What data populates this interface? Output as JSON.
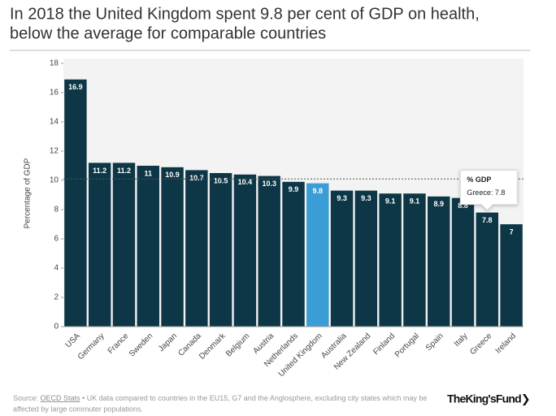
{
  "chart_data": {
    "type": "bar",
    "title": [
      "In 2018 the United Kingdom spent 9.8 per cent of GDP on health,",
      "below the average for comparable countries"
    ],
    "y_label": "Percentage of GDP",
    "categories": [
      "USA",
      "Germany",
      "France",
      "Sweden",
      "Japan",
      "Canada",
      "Denmark",
      "Belgium",
      "Austria",
      "Netherlands",
      "United Kingdom",
      "Australia",
      "New Zealand",
      "Finland",
      "Portugal",
      "Spain",
      "Italy",
      "Greece",
      "Ireland"
    ],
    "values": [
      16.9,
      11.2,
      11.2,
      11,
      10.9,
      10.7,
      10.5,
      10.4,
      10.3,
      9.9,
      9.8,
      9.3,
      9.3,
      9.1,
      9.1,
      8.9,
      8.8,
      7.8,
      7
    ],
    "colors": [
      "#0d3746",
      "#0d3746",
      "#0d3746",
      "#0d3746",
      "#0d3746",
      "#0d3746",
      "#0d3746",
      "#0d3746",
      "#0d3746",
      "#0d3746",
      "#3a9dd6",
      "#0d3746",
      "#0d3746",
      "#0d3746",
      "#0d3746",
      "#0d3746",
      "#0d3746",
      "#0d3746",
      "#0d3746"
    ],
    "average": 10.1,
    "ylim": [
      0,
      18
    ],
    "yticks": [
      0,
      2,
      4,
      6,
      8,
      10,
      12,
      14,
      16,
      18
    ],
    "tooltip": {
      "title": "% GDP",
      "text": "Greece: 7.8",
      "index": 17
    },
    "source": {
      "prefix": "Source: ",
      "link": "OECD Stats",
      "text": " • UK data compared to countries in the EU15, G7 and the Anglosphere, excluding city states which may be",
      "text2": "affected by large commuter populations."
    },
    "logo": "TheKing'sFund❯"
  }
}
